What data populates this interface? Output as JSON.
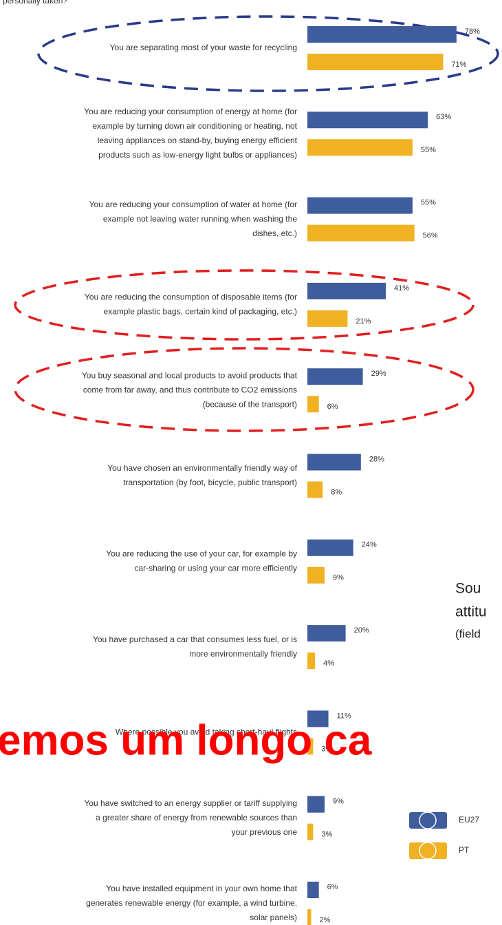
{
  "chart_data": {
    "type": "bar",
    "orientation": "horizontal",
    "subtitle": "personally taken?",
    "categories": [
      [
        "You are separating most of your waste for recycling"
      ],
      [
        "You are reducing your consumption of energy at home (for",
        "example by turning down air conditioning or heating, not",
        "leaving appliances on stand-by, buying energy efficient",
        "products such as low-energy light bulbs or appliances)"
      ],
      [
        "You are reducing your consumption of water at home (for",
        "example not leaving water running when washing the",
        "dishes, etc.)"
      ],
      [
        "You are reducing the consumption of disposable items (for",
        "example plastic bags, certain kind of packaging, etc.)"
      ],
      [
        "You buy seasonal and local products to avoid products that",
        "come from far away, and thus contribute to CO2 emissions",
        "(because of the transport)"
      ],
      [
        "You have chosen an environmentally friendly way of",
        "transportation (by foot, bicycle, public transport)"
      ],
      [
        "You are reducing the use of your car, for example by",
        "car-sharing or using your car more efficiently"
      ],
      [
        "You have purchased a car that consumes less fuel, or is",
        "more environmentally friendly"
      ],
      [
        "Where possible you avoid taking short-haul flights"
      ],
      [
        "You have switched to an energy supplier or tariff supplying",
        "a greater share of energy from renewable sources than",
        "your previous one"
      ],
      [
        "You have installed equipment in your own home that",
        "generates renewable energy (for example, a wind turbine,",
        "solar panels)"
      ]
    ],
    "series": [
      {
        "name": "EU27",
        "color": "#3f5c9c",
        "values": [
          78,
          63,
          55,
          41,
          29,
          28,
          24,
          20,
          11,
          9,
          6
        ],
        "value_labels": [
          "78%",
          "63%",
          "55%",
          "41%",
          "29%",
          "28%",
          "24%",
          "20%",
          "11%",
          "9%",
          "6%"
        ]
      },
      {
        "name": "PT",
        "color": "#f0b123",
        "values": [
          71,
          55,
          56,
          21,
          6,
          8,
          9,
          4,
          3,
          3,
          2
        ],
        "value_labels": [
          "71%",
          "55%",
          "56%",
          "21%",
          "6%",
          "8%",
          "9%",
          "4%",
          "3%",
          "3%",
          "2%"
        ]
      }
    ],
    "overlay_texts": [
      "Sou",
      "attitu",
      "(field"
    ],
    "banner": "emos um longo ca"
  }
}
